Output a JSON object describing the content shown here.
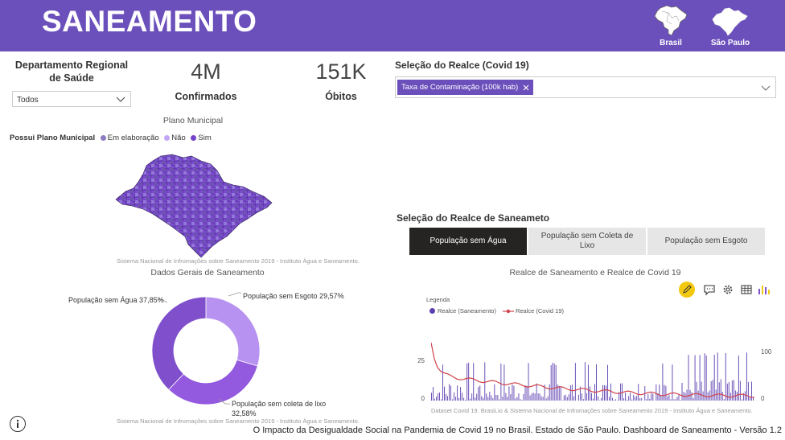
{
  "header": {
    "title": "SANEAMENTO",
    "nav": [
      {
        "label": "Brasil",
        "icon": "brazil-map-icon"
      },
      {
        "label": "São Paulo",
        "icon": "sao-paulo-map-icon"
      }
    ]
  },
  "filters": {
    "department_label": "Departamento Regional de Saúde",
    "department_value": "Todos"
  },
  "kpis": [
    {
      "value": "4M",
      "label": "Confirmados"
    },
    {
      "value": "151K",
      "label": "Óbitos"
    }
  ],
  "covid_select": {
    "label": "Seleção do Realce (Covid 19)",
    "tag": "Taxa de Contaminação (100k hab)"
  },
  "map": {
    "title": "Plano Municipal",
    "legend_label": "Possui Plano Municipal",
    "legend": [
      {
        "label": "Em elaboração",
        "color": "#8E7CC3"
      },
      {
        "label": "Não",
        "color": "#C3A6F5"
      },
      {
        "label": "Sim",
        "color": "#7442C8"
      }
    ],
    "source": "Sistema Nacional de Infromações sobre Saneamento 2019 - Instituto Água e Saneamento."
  },
  "donut": {
    "title": "Dados Gerais de Saneamento",
    "source": "Sistema Nacional de Infromações sobre Saneamento 2019 - Instituto Água e Saneamento.",
    "slices": [
      {
        "label": "População sem Esgoto 29,57%",
        "value": 29.57,
        "color": "#B792F0"
      },
      {
        "label": "População sem coleta de lixo 32,58%",
        "label_line1": "População sem coleta de lixo",
        "label_line2": "32,58%",
        "value": 32.58,
        "color": "#9359DE"
      },
      {
        "label": "População sem Água 37,85%",
        "value": 37.85,
        "color": "#7F4FCC"
      }
    ]
  },
  "sanitation_select": {
    "label": "Seleção do Realce de Saneameto",
    "options": [
      {
        "label": "População sem Água",
        "active": true
      },
      {
        "label": "População sem Coleta de Lixo",
        "active": false
      },
      {
        "label": "População sem Esgoto",
        "active": false
      }
    ]
  },
  "chart_data": {
    "type": "bar",
    "title": "Realce de Saneamento e Realce de Covid 19",
    "legend_title": "Legenda",
    "legend_position": "top-left",
    "series": [
      {
        "name": "Realce (Saneamento)",
        "type": "bar",
        "axis": "left",
        "color": "#5B3FB0"
      },
      {
        "name": "Realce (Covid 19)",
        "type": "line",
        "axis": "right",
        "color": "#D1424B"
      }
    ],
    "yleft_ticks": [
      "25",
      "0"
    ],
    "yright_ticks": [
      "100",
      "0"
    ],
    "ylim_left": [
      0,
      40
    ],
    "ylim_right": [
      0,
      130
    ],
    "grid": false,
    "source": "Dataset Covid 19. BrasiLio  & Sistema Nacional de Infromações sobre Saneamento 2019 - Instituto Água e Saneamento."
  },
  "footer": {
    "text": "O Impacto da Desigualdade Social na Pandemia de Covid 19 no Brasil. Estado de São Paulo. Dashboard de Saneamento - Versão 1.2"
  },
  "icons": {
    "info": "info-icon",
    "tools": [
      "pencil-icon",
      "comment-icon",
      "gear-icon",
      "grid-icon",
      "bar-chart-icon"
    ]
  }
}
